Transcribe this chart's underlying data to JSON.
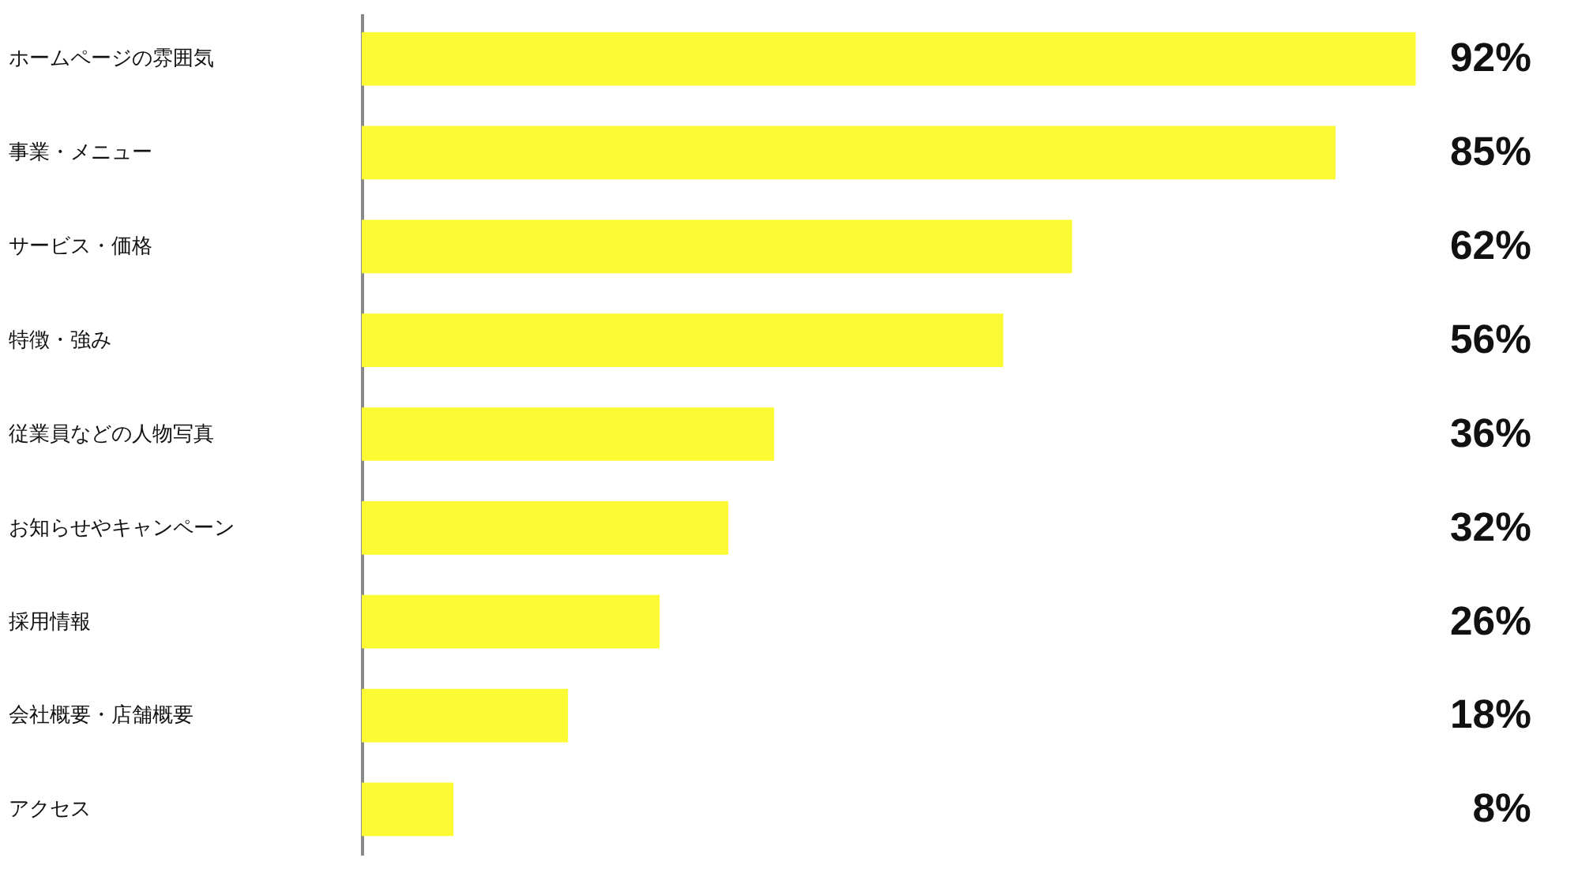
{
  "chart_data": {
    "type": "bar",
    "orientation": "horizontal",
    "categories": [
      "ホームページの雰囲気",
      "事業・メニュー",
      "サービス・価格",
      "特徴・強み",
      "従業員などの人物写真",
      "お知らせやキャンペーン",
      "採用情報",
      "会社概要・店舗概要",
      "アクセス"
    ],
    "values": [
      92,
      85,
      62,
      56,
      36,
      32,
      26,
      18,
      8
    ],
    "value_labels": [
      "92%",
      "85%",
      "62%",
      "56%",
      "36%",
      "32%",
      "26%",
      "18%",
      "8%"
    ],
    "colors": [
      "#fcfa32",
      "#fcfa32",
      "#fcfa32",
      "#fcfa32",
      "#fcfa32",
      "#fcfa32",
      "#fcfa32",
      "#fcfa32",
      "#fcfa32"
    ],
    "grid": false
  }
}
